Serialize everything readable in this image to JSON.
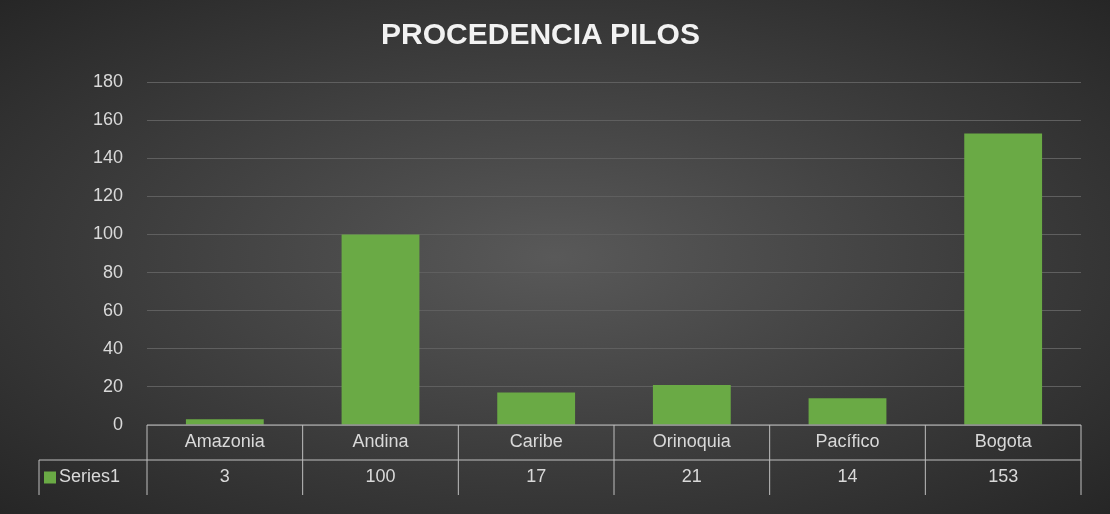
{
  "chart_data": {
    "type": "bar",
    "title": "PROCEDENCIA PILOS",
    "categories": [
      "Amazonia",
      "Andina",
      "Caribe",
      "Orinoquia",
      "Pacífico",
      "Bogota"
    ],
    "series": [
      {
        "name": "Series1",
        "color": "#6aaa45",
        "values": [
          3,
          100,
          17,
          21,
          14,
          153
        ]
      }
    ],
    "ylim": [
      0,
      180
    ],
    "yticks": [
      0,
      20,
      40,
      60,
      80,
      100,
      120,
      140,
      160,
      180
    ],
    "grid": "y",
    "data_labels": true
  }
}
